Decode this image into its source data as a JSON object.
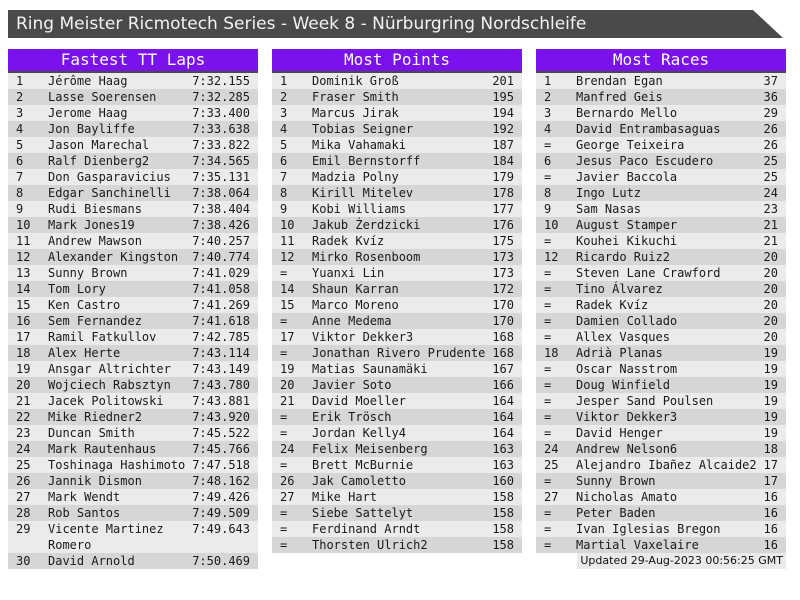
{
  "title": "Ring Meister Ricmotech Series - Week 8 - Nürburgring Nordschleife",
  "footer": {
    "updated": "Updated 29-Aug-2023 00:56:25 GMT"
  },
  "colors": {
    "accent": "#7b11ed",
    "titlebar": "#4a4a4a",
    "row_odd": "#ebebeb",
    "row_even": "#d6d6d6"
  },
  "tables": [
    {
      "title": "Fastest TT Laps",
      "rows": [
        [
          "1",
          "Jérôme Haag",
          "7:32.155"
        ],
        [
          "2",
          "Lasse Soerensen",
          "7:32.285"
        ],
        [
          "3",
          "Jerome Haag",
          "7:33.400"
        ],
        [
          "4",
          "Jon Bayliffe",
          "7:33.638"
        ],
        [
          "5",
          "Jason Marechal",
          "7:33.822"
        ],
        [
          "6",
          "Ralf Dienberg2",
          "7:34.565"
        ],
        [
          "7",
          "Don Gasparavicius",
          "7:35.131"
        ],
        [
          "8",
          "Edgar Sanchinelli",
          "7:38.064"
        ],
        [
          "9",
          "Rudi Biesmans",
          "7:38.404"
        ],
        [
          "10",
          "Mark Jones19",
          "7:38.426"
        ],
        [
          "11",
          "Andrew Mawson",
          "7:40.257"
        ],
        [
          "12",
          "Alexander Kingston",
          "7:40.774"
        ],
        [
          "13",
          "Sunny Brown",
          "7:41.029"
        ],
        [
          "14",
          "Tom Lory",
          "7:41.058"
        ],
        [
          "15",
          "Ken Castro",
          "7:41.269"
        ],
        [
          "16",
          "Sem Fernandez",
          "7:41.618"
        ],
        [
          "17",
          "Ramil Fatkullov",
          "7:42.785"
        ],
        [
          "18",
          "Alex Herte",
          "7:43.114"
        ],
        [
          "19",
          "Ansgar Altrichter",
          "7:43.149"
        ],
        [
          "20",
          "Wojciech Rabsztyn",
          "7:43.780"
        ],
        [
          "21",
          "Jacek Politowski",
          "7:43.881"
        ],
        [
          "22",
          "Mike Riedner2",
          "7:43.920"
        ],
        [
          "23",
          "Duncan Smith",
          "7:45.522"
        ],
        [
          "24",
          "Mark Rautenhaus",
          "7:45.766"
        ],
        [
          "25",
          "Toshinaga Hashimoto",
          "7:47.518"
        ],
        [
          "26",
          "Jannik Dismon",
          "7:48.162"
        ],
        [
          "27",
          "Mark Wendt",
          "7:49.426"
        ],
        [
          "28",
          "Rob Santos",
          "7:49.509"
        ],
        [
          "29",
          "Vicente Martinez Romero",
          "7:49.643"
        ],
        [
          "30",
          "David Arnold",
          "7:50.469"
        ]
      ]
    },
    {
      "title": "Most Points",
      "rows": [
        [
          "1",
          "Dominik Groß",
          "201"
        ],
        [
          "2",
          "Fraser Smith",
          "195"
        ],
        [
          "3",
          "Marcus Jirak",
          "194"
        ],
        [
          "4",
          "Tobias Seigner",
          "192"
        ],
        [
          "5",
          "Mika Vahamaki",
          "187"
        ],
        [
          "6",
          "Emil Bernstorff",
          "184"
        ],
        [
          "7",
          "Madzia Polny",
          "179"
        ],
        [
          "8",
          "Kirill Mitelev",
          "178"
        ],
        [
          "9",
          "Kobi Williams",
          "177"
        ],
        [
          "10",
          "Jakub Żerdzicki",
          "176"
        ],
        [
          "11",
          "Radek Kvíz",
          "175"
        ],
        [
          "12",
          "Mirko Rosenboom",
          "173"
        ],
        [
          "=",
          "Yuanxi Lin",
          "173"
        ],
        [
          "14",
          "Shaun Karran",
          "172"
        ],
        [
          "15",
          "Marco Moreno",
          "170"
        ],
        [
          "=",
          "Anne Medema",
          "170"
        ],
        [
          "17",
          "Viktor Dekker3",
          "168"
        ],
        [
          "=",
          "Jonathan Rivero Prudente",
          "168"
        ],
        [
          "19",
          "Matias Saunamäki",
          "167"
        ],
        [
          "20",
          "Javier Soto",
          "166"
        ],
        [
          "21",
          "David Moeller",
          "164"
        ],
        [
          "=",
          "Erik Trösch",
          "164"
        ],
        [
          "=",
          "Jordan Kelly4",
          "164"
        ],
        [
          "24",
          "Felix Meisenberg",
          "163"
        ],
        [
          "=",
          "Brett McBurnie",
          "163"
        ],
        [
          "26",
          "Jak Camoletto",
          "160"
        ],
        [
          "27",
          "Mike Hart",
          "158"
        ],
        [
          "=",
          "Siebe Sattelyt",
          "158"
        ],
        [
          "=",
          "Ferdinand Arndt",
          "158"
        ],
        [
          "=",
          "Thorsten Ulrich2",
          "158"
        ]
      ]
    },
    {
      "title": "Most Races",
      "rows": [
        [
          "1",
          "Brendan Egan",
          "37"
        ],
        [
          "2",
          "Manfred Geis",
          "36"
        ],
        [
          "3",
          "Bernardo Mello",
          "29"
        ],
        [
          "4",
          "David Entrambasaguas",
          "26"
        ],
        [
          "=",
          "George Teixeira",
          "26"
        ],
        [
          "6",
          "Jesus Paco Escudero",
          "25"
        ],
        [
          "=",
          "Javier Baccola",
          "25"
        ],
        [
          "8",
          "Ingo Lutz",
          "24"
        ],
        [
          "9",
          "Sam Nasas",
          "23"
        ],
        [
          "10",
          "August Stamper",
          "21"
        ],
        [
          "=",
          "Kouhei Kikuchi",
          "21"
        ],
        [
          "12",
          "Ricardo Ruiz2",
          "20"
        ],
        [
          "=",
          "Steven Lane Crawford",
          "20"
        ],
        [
          "=",
          "Tino Álvarez",
          "20"
        ],
        [
          "=",
          "Radek Kvíz",
          "20"
        ],
        [
          "=",
          "Damien Collado",
          "20"
        ],
        [
          "=",
          "Allex Vasques",
          "20"
        ],
        [
          "18",
          "Adrià Planas",
          "19"
        ],
        [
          "=",
          "Oscar Nasstrom",
          "19"
        ],
        [
          "=",
          "Doug Winfield",
          "19"
        ],
        [
          "=",
          "Jesper Sand Poulsen",
          "19"
        ],
        [
          "=",
          "Viktor Dekker3",
          "19"
        ],
        [
          "=",
          "David Henger",
          "19"
        ],
        [
          "24",
          "Andrew Nelson6",
          "18"
        ],
        [
          "25",
          "Alejandro Ibañez Alcaide2",
          "17"
        ],
        [
          "=",
          "Sunny Brown",
          "17"
        ],
        [
          "27",
          "Nicholas Amato",
          "16"
        ],
        [
          "=",
          "Peter Baden",
          "16"
        ],
        [
          "=",
          "Ivan Iglesias Bregon",
          "16"
        ],
        [
          "=",
          "Martial Vaxelaire",
          "16"
        ]
      ]
    }
  ]
}
